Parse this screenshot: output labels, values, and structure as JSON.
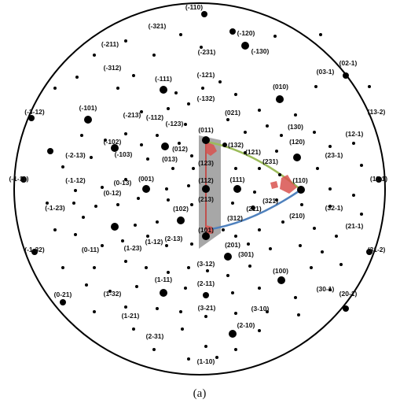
{
  "figure": {
    "caption": "(a)",
    "colors": {
      "outline": "#000000",
      "pole": "#000000",
      "triangle_fill": "#8a8a8a",
      "edge_green": "#9bbb59",
      "edge_blue": "#4f81bd",
      "edge_red": "#c0504d",
      "highlight": "#d9534f"
    },
    "labels": [
      "(-110)",
      "(-321)",
      "(-120)",
      "(-211)",
      "(-231)",
      "(-130)",
      "(02-1)",
      "(-312)",
      "(03-1)",
      "(-111)",
      "(-121)",
      "(010)",
      "(-3-12)",
      "(-132)",
      "(13-2)",
      "(-101)",
      "(-213)",
      "(-112)",
      "(021)",
      "(130)",
      "(-123)",
      "(12-1)",
      "(011)",
      "(120)",
      "(-102)",
      "(012)",
      "(132)",
      "(-2-13)",
      "(-103)",
      "(121)",
      "(23-1)",
      "(013)",
      "(231)",
      "(123)",
      "(110)",
      "(-1-11)",
      "(001)",
      "(11-1)",
      "(-1-12)",
      "(112)",
      "(111)",
      "(0-13)",
      "(213)",
      "(321)",
      "(-1-23)",
      "(102)",
      "(211)",
      "(210)",
      "(32-1)",
      "(0-12)",
      "(101)",
      "(21-1)",
      "(312)",
      "(1-12)",
      "(2-13)",
      "(201)",
      "(-1-32)",
      "(1-23)",
      "(0-11)",
      "(301)",
      "(31-2)",
      "(3-12)",
      "(100)",
      "(1-11)",
      "(2-11)",
      "(30-1)",
      "(0-21)",
      "(1-32)",
      "(20-1)",
      "(3-21)",
      "(3-10)",
      "(1-21)",
      "(2-10)",
      "(2-31)",
      "(1-10)"
    ]
  }
}
